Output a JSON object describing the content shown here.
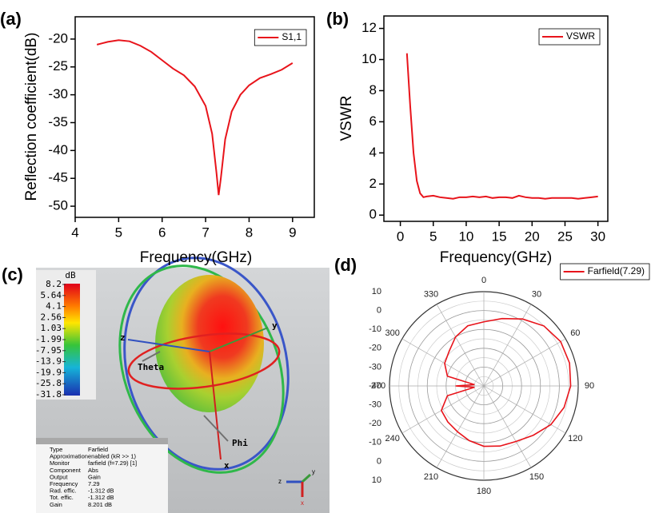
{
  "chart_data": [
    {
      "type": "line",
      "label": "(a)",
      "xlabel": "Frequency(GHz)",
      "ylabel": "Reflection coefficient(dB)",
      "x": [
        4.5,
        4.75,
        5,
        5.25,
        5.5,
        5.75,
        6,
        6.25,
        6.5,
        6.75,
        7,
        7.15,
        7.25,
        7.3,
        7.35,
        7.45,
        7.6,
        7.8,
        8,
        8.25,
        8.5,
        8.75,
        9
      ],
      "series": [
        {
          "name": "S1,1",
          "color": "#e8141b",
          "values": [
            -21,
            -20.5,
            -20.2,
            -20.4,
            -21.2,
            -22.3,
            -23.8,
            -25.3,
            -26.5,
            -28.5,
            -32,
            -37,
            -44,
            -48,
            -45,
            -38,
            -33,
            -30,
            -28.3,
            -27,
            -26.3,
            -25.5,
            -24.3
          ]
        }
      ],
      "xlim": [
        4,
        9.5
      ],
      "ylim": [
        -52,
        -16
      ],
      "xticks": [
        4,
        5,
        6,
        7,
        8,
        9
      ],
      "yticks": [
        -50,
        -45,
        -40,
        -35,
        -30,
        -25,
        -20
      ],
      "legend": "upper right"
    },
    {
      "type": "line",
      "label": "(b)",
      "xlabel": "Frequency(GHz)",
      "ylabel": "VSWR",
      "x": [
        1,
        1.5,
        2,
        2.5,
        3,
        3.5,
        4,
        5,
        6,
        7,
        8,
        9,
        10,
        11,
        12,
        13,
        14,
        15,
        16,
        17,
        18,
        19,
        20,
        21,
        22,
        23,
        24,
        25,
        26,
        27,
        28,
        29,
        30
      ],
      "series": [
        {
          "name": "VSWR",
          "color": "#e8141b",
          "values": [
            10.4,
            7,
            4,
            2.2,
            1.4,
            1.15,
            1.2,
            1.25,
            1.15,
            1.1,
            1.05,
            1.15,
            1.15,
            1.2,
            1.15,
            1.2,
            1.1,
            1.15,
            1.15,
            1.1,
            1.25,
            1.15,
            1.1,
            1.1,
            1.05,
            1.1,
            1.1,
            1.1,
            1.1,
            1.05,
            1.1,
            1.15,
            1.2
          ]
        }
      ],
      "xlim": [
        -2.5,
        31.5
      ],
      "ylim": [
        -0.4,
        12.8
      ],
      "xticks": [
        0,
        5,
        10,
        15,
        20,
        25,
        30
      ],
      "yticks": [
        0,
        2,
        4,
        6,
        8,
        10,
        12
      ],
      "legend": "upper right"
    },
    {
      "type": "polar",
      "label": "(d)",
      "theta": [
        0,
        15,
        30,
        45,
        60,
        75,
        90,
        105,
        120,
        135,
        150,
        165,
        180,
        195,
        210,
        225,
        240,
        255,
        262,
        270,
        278,
        285,
        300,
        315,
        330,
        345,
        360
      ],
      "series": [
        {
          "name": "Farfield(7.29)",
          "color": "#e8141b",
          "values": [
            -6,
            -3,
            1,
            5,
            7,
            7,
            6,
            4,
            1,
            -3,
            -6,
            -7,
            -8,
            -10,
            -12,
            -13,
            -14,
            -20,
            -35,
            -25,
            -35,
            -20,
            -16,
            -14,
            -10,
            -7,
            -6
          ]
        }
      ],
      "rlim": [
        -40,
        10
      ],
      "rticks": [
        -40,
        -30,
        -20,
        -10,
        0,
        10
      ],
      "thetaticks": [
        0,
        30,
        60,
        90,
        120,
        150,
        180,
        210,
        240,
        270,
        300,
        330
      ],
      "legend": "upper right"
    }
  ],
  "render": {
    "label": "(c)",
    "colorbar": {
      "title": "dB",
      "ticks": [
        8.2,
        5.64,
        4.1,
        2.56,
        1.03,
        -1.99,
        -7.95,
        -13.9,
        -19.9,
        -25.8,
        -31.8
      ]
    },
    "axes": {
      "x": "x",
      "y": "y",
      "z": "z",
      "theta": "Theta",
      "phi": "Phi"
    },
    "info": [
      [
        "Type",
        "Farfield"
      ],
      [
        "Approximation",
        "enabled (kR >> 1)"
      ],
      [
        "Monitor",
        "farfield (f=7.29) [1]"
      ],
      [
        "Component",
        "Abs"
      ],
      [
        "Output",
        "Gain"
      ],
      [
        "Frequency",
        "7.29"
      ],
      [
        "Rad. effic.",
        "-1.312 dB"
      ],
      [
        "Tot. effic.",
        "-1.312 dB"
      ],
      [
        "Gain",
        "8.201 dB"
      ]
    ]
  }
}
